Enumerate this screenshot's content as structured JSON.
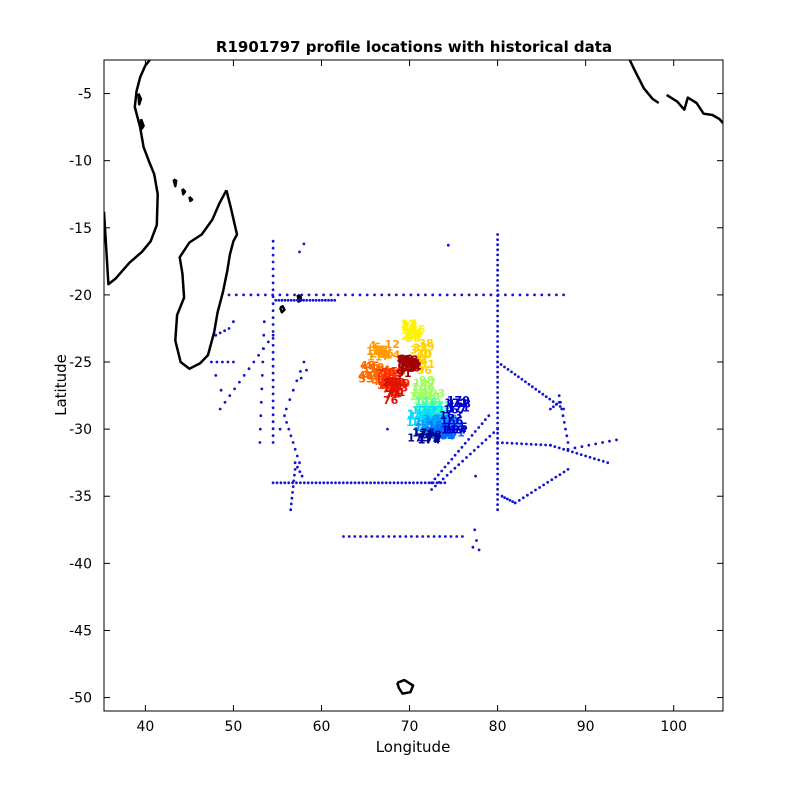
{
  "chart_data": {
    "type": "scatter",
    "title": "R1901797 profile locations with historical data",
    "xlabel": "Longitude",
    "ylabel": "Latitude",
    "xlim": [
      35.3,
      105.6
    ],
    "ylim": [
      -51,
      -2.5
    ],
    "xticks": [
      40,
      50,
      60,
      70,
      80,
      90,
      100
    ],
    "yticks": [
      -5,
      -10,
      -15,
      -20,
      -25,
      -30,
      -35,
      -40,
      -45,
      -50
    ],
    "grid": false,
    "legend": "none",
    "colors": {
      "historical": "#1414d2",
      "coast": "#000000"
    },
    "coastlines": [
      [
        [
          35.3,
          -13.8
        ],
        [
          35.8,
          -19.2
        ],
        [
          36.6,
          -18.8
        ],
        [
          38.2,
          -17.6
        ],
        [
          39.6,
          -16.8
        ],
        [
          40.6,
          -16.0
        ],
        [
          41.3,
          -14.8
        ],
        [
          41.4,
          -12.5
        ],
        [
          41.0,
          -11.0
        ],
        [
          40.5,
          -10.2
        ],
        [
          39.8,
          -9.0
        ],
        [
          39.4,
          -7.5
        ],
        [
          38.8,
          -6.0
        ],
        [
          39.0,
          -4.8
        ],
        [
          39.4,
          -3.8
        ],
        [
          40.0,
          -2.9
        ],
        [
          40.5,
          -2.5
        ]
      ],
      [
        [
          49.2,
          -12.2
        ],
        [
          49.7,
          -13.5
        ],
        [
          50.4,
          -15.5
        ],
        [
          50.0,
          -16.0
        ],
        [
          49.6,
          -17.0
        ],
        [
          49.3,
          -18.2
        ],
        [
          48.8,
          -19.8
        ],
        [
          48.2,
          -21.3
        ],
        [
          47.8,
          -22.8
        ],
        [
          47.1,
          -24.5
        ],
        [
          46.2,
          -25.1
        ],
        [
          45.0,
          -25.5
        ],
        [
          44.0,
          -25.0
        ],
        [
          43.4,
          -23.4
        ],
        [
          43.6,
          -21.5
        ],
        [
          44.4,
          -20.2
        ],
        [
          44.2,
          -18.4
        ],
        [
          43.9,
          -17.2
        ],
        [
          45.0,
          -16.1
        ],
        [
          46.4,
          -15.5
        ],
        [
          47.6,
          -14.4
        ],
        [
          48.4,
          -13.2
        ],
        [
          49.2,
          -12.2
        ]
      ],
      [
        [
          55.3,
          -20.95
        ],
        [
          55.6,
          -20.85
        ],
        [
          55.8,
          -21.1
        ],
        [
          55.5,
          -21.3
        ],
        [
          55.3,
          -20.95
        ]
      ],
      [
        [
          57.3,
          -20.0
        ],
        [
          57.6,
          -20.1
        ],
        [
          57.7,
          -20.4
        ],
        [
          57.4,
          -20.5
        ],
        [
          57.3,
          -20.0
        ]
      ],
      [
        [
          43.2,
          -11.4
        ],
        [
          43.5,
          -11.5
        ],
        [
          43.4,
          -11.9
        ],
        [
          43.2,
          -11.4
        ]
      ],
      [
        [
          44.2,
          -12.1
        ],
        [
          44.5,
          -12.3
        ],
        [
          44.3,
          -12.5
        ],
        [
          44.2,
          -12.1
        ]
      ],
      [
        [
          45.0,
          -12.7
        ],
        [
          45.3,
          -12.9
        ],
        [
          45.1,
          -13.0
        ],
        [
          45.0,
          -12.7
        ]
      ],
      [
        [
          39.2,
          -5.0
        ],
        [
          39.5,
          -5.4
        ],
        [
          39.3,
          -5.8
        ],
        [
          39.2,
          -5.0
        ]
      ],
      [
        [
          39.5,
          -6.9
        ],
        [
          39.8,
          -7.4
        ],
        [
          39.6,
          -7.6
        ],
        [
          39.5,
          -6.9
        ]
      ],
      [
        [
          68.6,
          -48.9
        ],
        [
          69.4,
          -48.7
        ],
        [
          70.4,
          -49.1
        ],
        [
          70.1,
          -49.6
        ],
        [
          69.2,
          -49.7
        ],
        [
          68.8,
          -49.3
        ],
        [
          68.6,
          -48.9
        ]
      ],
      [
        [
          95.0,
          -2.5
        ],
        [
          95.6,
          -3.3
        ],
        [
          96.6,
          -4.6
        ],
        [
          97.6,
          -5.4
        ],
        [
          98.3,
          -5.7
        ]
      ],
      [
        [
          99.2,
          -5.1
        ],
        [
          100.4,
          -5.6
        ],
        [
          101.2,
          -6.2
        ],
        [
          101.6,
          -5.3
        ],
        [
          102.6,
          -5.7
        ],
        [
          103.4,
          -6.5
        ],
        [
          104.4,
          -6.6
        ],
        [
          105.2,
          -6.9
        ],
        [
          105.6,
          -7.2
        ]
      ]
    ],
    "series": [
      {
        "name": "historical",
        "segments": [
          [
            [
              49.5,
              -20.0
            ],
            [
              87.5,
              -20.0
            ],
            47
          ],
          [
            [
              54.5,
              -16.0
            ],
            [
              54.5,
              -31.0
            ],
            30
          ],
          [
            [
              54.8,
              -20.4
            ],
            [
              61.5,
              -20.4
            ],
            20
          ],
          [
            [
              54.5,
              -34.0
            ],
            [
              74.0,
              -34.0
            ],
            45
          ],
          [
            [
              80.0,
              -15.5
            ],
            [
              80.0,
              -36.0
            ],
            55
          ],
          [
            [
              80.0,
              -25.0
            ],
            [
              87.5,
              -28.5
            ],
            20
          ],
          [
            [
              80.0,
              -31.0
            ],
            [
              86.0,
              -31.2
            ],
            12
          ],
          [
            [
              86.0,
              -31.2
            ],
            [
              92.5,
              -32.5
            ],
            14
          ],
          [
            [
              80.5,
              -35.0
            ],
            [
              82.0,
              -35.5
            ],
            6
          ],
          [
            [
              82.0,
              -35.5
            ],
            [
              88.0,
              -33.0
            ],
            14
          ],
          [
            [
              72.5,
              -34.0
            ],
            [
              79.0,
              -29.0
            ],
            18
          ],
          [
            [
              72.5,
              -34.5
            ],
            [
              80.0,
              -30.0
            ],
            18
          ],
          [
            [
              62.5,
              -38.0
            ],
            [
              76.0,
              -38.0
            ],
            22
          ],
          [
            [
              47.5,
              -25.0
            ],
            [
              50.0,
              -25.0
            ],
            5
          ],
          [
            [
              48.5,
              -28.5
            ],
            [
              54.5,
              -23.0
            ],
            12
          ],
          [
            [
              87.0,
              -27.5
            ],
            [
              88.0,
              -31.0
            ],
            8
          ],
          [
            [
              86.0,
              -28.5
            ],
            [
              87.0,
              -28.0
            ],
            4
          ],
          [
            [
              57.0,
              -32.5
            ],
            [
              57.8,
              -33.5
            ],
            4
          ],
          [
            [
              55.8,
              -29.0
            ],
            [
              57.5,
              -32.5
            ],
            8
          ],
          [
            [
              57.0,
              -33.0
            ],
            [
              56.5,
              -36.0
            ],
            8
          ],
          [
            [
              53.5,
              -22.0
            ],
            [
              53.0,
              -31.0
            ],
            10
          ],
          [
            [
              48.0,
              -23.0
            ],
            [
              49.5,
              -22.5
            ],
            4
          ],
          [
            [
              88.0,
              -31.5
            ],
            [
              93.5,
              -30.8
            ],
            8
          ],
          [
            [
              56.0,
              -28.5
            ],
            [
              58.0,
              -25.0
            ],
            6
          ],
          [
            [
              58.0,
              -16.2
            ],
            [
              57.5,
              -16.8
            ],
            2
          ]
        ],
        "points": [
          [
            74.4,
            -16.3
          ],
          [
            67.5,
            -30.0
          ],
          [
            50.0,
            -22.0
          ],
          [
            48.0,
            -26.0
          ],
          [
            48.6,
            -27.1
          ],
          [
            58.3,
            -25.6
          ],
          [
            57.7,
            -26.2
          ],
          [
            77.4,
            -37.5
          ],
          [
            77.6,
            -38.3
          ],
          [
            77.2,
            -38.8
          ],
          [
            77.9,
            -39.0
          ],
          [
            55.3,
            -30.0
          ],
          [
            77.5,
            -33.5
          ]
        ]
      }
    ],
    "float_profiles": {
      "colormap": "jet",
      "marker": "profile number",
      "clusters": [
        {
          "center": [
            66.9,
            -24.2
          ],
          "spread": [
            1.3,
            0.5
          ],
          "count": 16,
          "color": "#ff9a00"
        },
        {
          "center": [
            70.5,
            -22.8
          ],
          "spread": [
            0.8,
            0.6
          ],
          "count": 12,
          "color": "#fff200"
        },
        {
          "center": [
            71.3,
            -24.8
          ],
          "spread": [
            0.8,
            1.2
          ],
          "count": 12,
          "color": "#ffd200"
        },
        {
          "center": [
            66.4,
            -25.9
          ],
          "spread": [
            1.4,
            0.6
          ],
          "count": 14,
          "color": "#ff6a00"
        },
        {
          "center": [
            68.3,
            -26.2
          ],
          "spread": [
            1.3,
            0.6
          ],
          "count": 16,
          "color": "#ff3000"
        },
        {
          "center": [
            68.6,
            -27.2
          ],
          "spread": [
            0.9,
            0.8
          ],
          "count": 12,
          "color": "#e01000"
        },
        {
          "center": [
            69.5,
            -25.4
          ],
          "spread": [
            1.1,
            0.6
          ],
          "count": 14,
          "color": "#a00000"
        },
        {
          "center": [
            72.0,
            -27.4
          ],
          "spread": [
            0.8,
            1.0
          ],
          "count": 12,
          "color": "#a0ff60"
        },
        {
          "center": [
            72.7,
            -28.4
          ],
          "spread": [
            0.9,
            0.8
          ],
          "count": 12,
          "color": "#40ffc0"
        },
        {
          "center": [
            71.8,
            -29.2
          ],
          "spread": [
            1.1,
            0.6
          ],
          "count": 12,
          "color": "#00e0ff"
        },
        {
          "center": [
            73.2,
            -29.8
          ],
          "spread": [
            1.8,
            0.6
          ],
          "count": 18,
          "color": "#00a0ff"
        },
        {
          "center": [
            73.8,
            -30.2
          ],
          "spread": [
            1.5,
            0.4
          ],
          "count": 12,
          "color": "#0070ff"
        },
        {
          "center": [
            75.2,
            -29.0
          ],
          "spread": [
            0.5,
            1.1
          ],
          "count": 10,
          "color": "#0000cd"
        },
        {
          "center": [
            72.0,
            -30.6
          ],
          "spread": [
            1.0,
            0.3
          ],
          "count": 6,
          "color": "#000090"
        }
      ]
    }
  }
}
